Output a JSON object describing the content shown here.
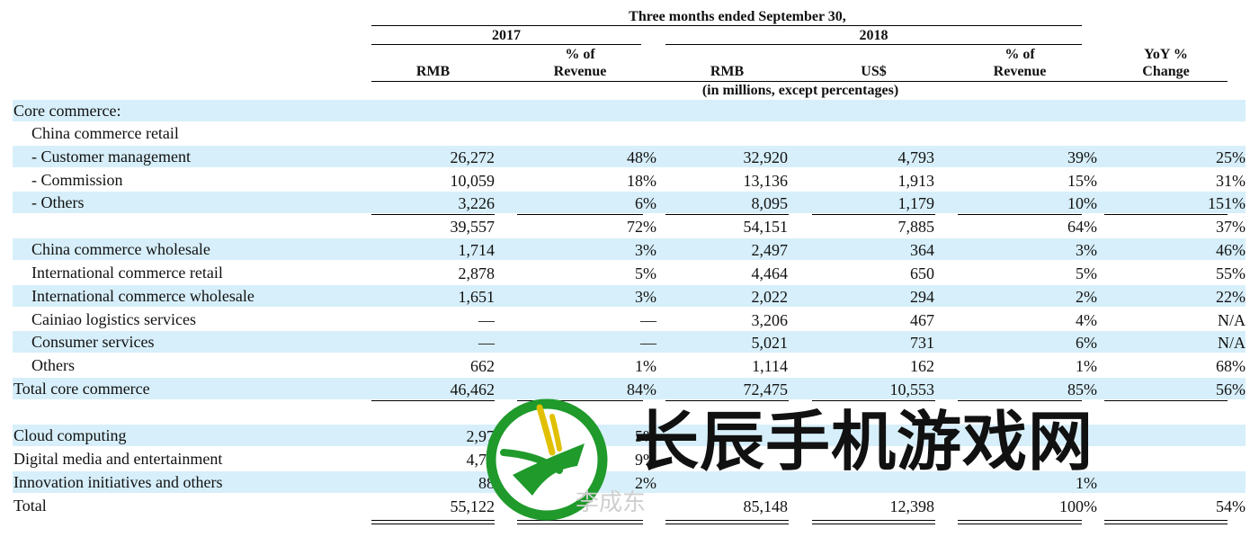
{
  "header": {
    "period": "Three months ended September 30,",
    "year_2017": "2017",
    "year_2018": "2018",
    "col_rmb_2017": "RMB",
    "col_pct_2017_line1": "% of",
    "col_pct_2017_line2": "Revenue",
    "col_rmb_2018": "RMB",
    "col_usd_2018": "US$",
    "col_pct_2018_line1": "% of",
    "col_pct_2018_line2": "Revenue",
    "col_yoy_line1": "YoY %",
    "col_yoy_line2": "Change",
    "units": "(in millions, except percentages)"
  },
  "rows": [
    {
      "label": "Core commerce:",
      "indent": 0,
      "values": [
        "",
        "",
        "",
        "",
        "",
        ""
      ]
    },
    {
      "label": "China commerce retail",
      "indent": 1,
      "values": [
        "",
        "",
        "",
        "",
        "",
        ""
      ]
    },
    {
      "label": "- Customer management",
      "indent": 1,
      "values": [
        "26,272",
        "48%",
        "32,920",
        "4,793",
        "39%",
        "25%"
      ]
    },
    {
      "label": "- Commission",
      "indent": 1,
      "values": [
        "10,059",
        "18%",
        "13,136",
        "1,913",
        "15%",
        "31%"
      ]
    },
    {
      "label": "- Others",
      "indent": 1,
      "values": [
        "3,226",
        "6%",
        "8,095",
        "1,179",
        "10%",
        "151%"
      ]
    },
    {
      "label": "",
      "indent": 1,
      "values": [
        "39,557",
        "72%",
        "54,151",
        "7,885",
        "64%",
        "37%"
      ]
    },
    {
      "label": "China commerce wholesale",
      "indent": 1,
      "values": [
        "1,714",
        "3%",
        "2,497",
        "364",
        "3%",
        "46%"
      ]
    },
    {
      "label": "International commerce retail",
      "indent": 1,
      "values": [
        "2,878",
        "5%",
        "4,464",
        "650",
        "5%",
        "55%"
      ]
    },
    {
      "label": "International commerce wholesale",
      "indent": 1,
      "values": [
        "1,651",
        "3%",
        "2,022",
        "294",
        "2%",
        "22%"
      ]
    },
    {
      "label": "Cainiao logistics services",
      "indent": 1,
      "values": [
        "—",
        "—",
        "3,206",
        "467",
        "4%",
        "N/A"
      ]
    },
    {
      "label": "Consumer services",
      "indent": 1,
      "values": [
        "—",
        "—",
        "5,021",
        "731",
        "6%",
        "N/A"
      ]
    },
    {
      "label": "Others",
      "indent": 1,
      "values": [
        "662",
        "1%",
        "1,114",
        "162",
        "1%",
        "68%"
      ]
    },
    {
      "label": "Total core commerce",
      "indent": 0,
      "values": [
        "46,462",
        "84%",
        "72,475",
        "10,553",
        "85%",
        "56%"
      ]
    },
    {
      "label": "",
      "indent": 0,
      "values": [
        "",
        "",
        "",
        "",
        "",
        ""
      ]
    },
    {
      "label": "Cloud computing",
      "indent": 0,
      "values": [
        "2,97",
        "5%",
        "",
        "",
        "",
        ""
      ]
    },
    {
      "label": "Digital media and entertainment",
      "indent": 0,
      "values": [
        "4,79",
        "9%",
        "",
        "",
        "",
        ""
      ]
    },
    {
      "label": "Innovation initiatives and others",
      "indent": 0,
      "values": [
        "88",
        "2%",
        "",
        "",
        "1%",
        ""
      ]
    },
    {
      "label": "Total",
      "indent": 0,
      "values": [
        "55,122",
        "",
        "85,148",
        "12,398",
        "100%",
        "54%"
      ]
    }
  ],
  "watermark": {
    "title": "长辰手机游戏网",
    "subtitle": "李成东"
  },
  "colors": {
    "row_shade": "#d7effa",
    "logo_green": "#1f9a2b",
    "logo_yellow": "#e0c000"
  }
}
